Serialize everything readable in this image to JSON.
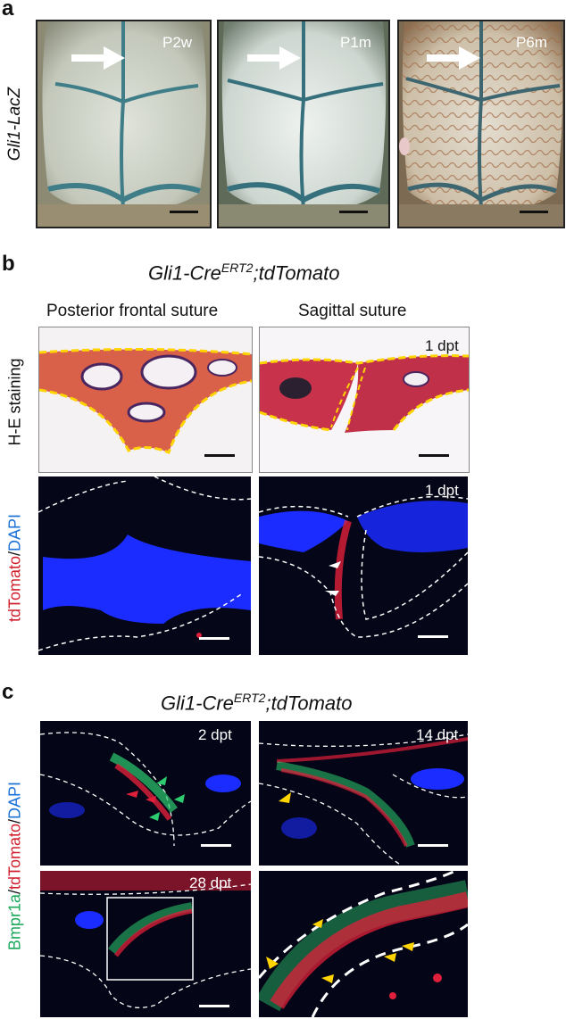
{
  "panel_a": {
    "letter": "a",
    "row_label": "Gli1-LacZ",
    "images": [
      {
        "label": "P2w",
        "icon": "white-arrow-icon"
      },
      {
        "label": "P1m",
        "icon": "white-arrow-icon"
      },
      {
        "label": "P6m",
        "icon": "white-arrow-icon"
      }
    ]
  },
  "panel_b": {
    "letter": "b",
    "title_main": "Gli1-Cre",
    "title_sup": "ERT2",
    "title_tail": ";tdTomato",
    "col1": "Posterior frontal suture",
    "col2": "Sagittal suture",
    "row1_label": "H-E staining",
    "row2_label_red": "tdTomato",
    "row2_label_sep": "/",
    "row2_label_blue": "DAPI",
    "he_timepoint": "1 dpt",
    "fluor_timepoint": "1 dpt"
  },
  "panel_c": {
    "letter": "c",
    "title_main": "Gli1-Cre",
    "title_sup": "ERT2",
    "title_tail": ";tdTomato",
    "row_label_green": "Bmpr1a",
    "row_label_sep1": "/",
    "row_label_red": "tdTomato",
    "row_label_sep2": "/",
    "row_label_blue": "DAPI",
    "timepoints": [
      "2 dpt",
      "14 dpt",
      "28 dpt"
    ]
  },
  "colors": {
    "dapi_blue": "#1a2cff",
    "tdtomato_red": "#e0203a",
    "bmpr1a_green": "#2ecc71",
    "he_pink": "#c8324a",
    "lacz_blue": "#2d6b78",
    "suture_yellow": "#ffd400"
  }
}
